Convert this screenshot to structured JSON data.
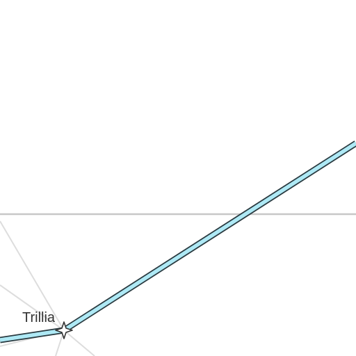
{
  "map": {
    "places": [
      {
        "name": "Trillia",
        "marker": "star-icon"
      }
    ],
    "colors": {
      "background": "#ffffff",
      "boundary_line": "#c8c8c8",
      "minor_road": "#dddddd",
      "route_fill": "#aee9f5",
      "route_casing": "#2a3a40",
      "label_text": "#333333",
      "marker_fill": "#ffffff",
      "marker_stroke": "#333333"
    }
  }
}
